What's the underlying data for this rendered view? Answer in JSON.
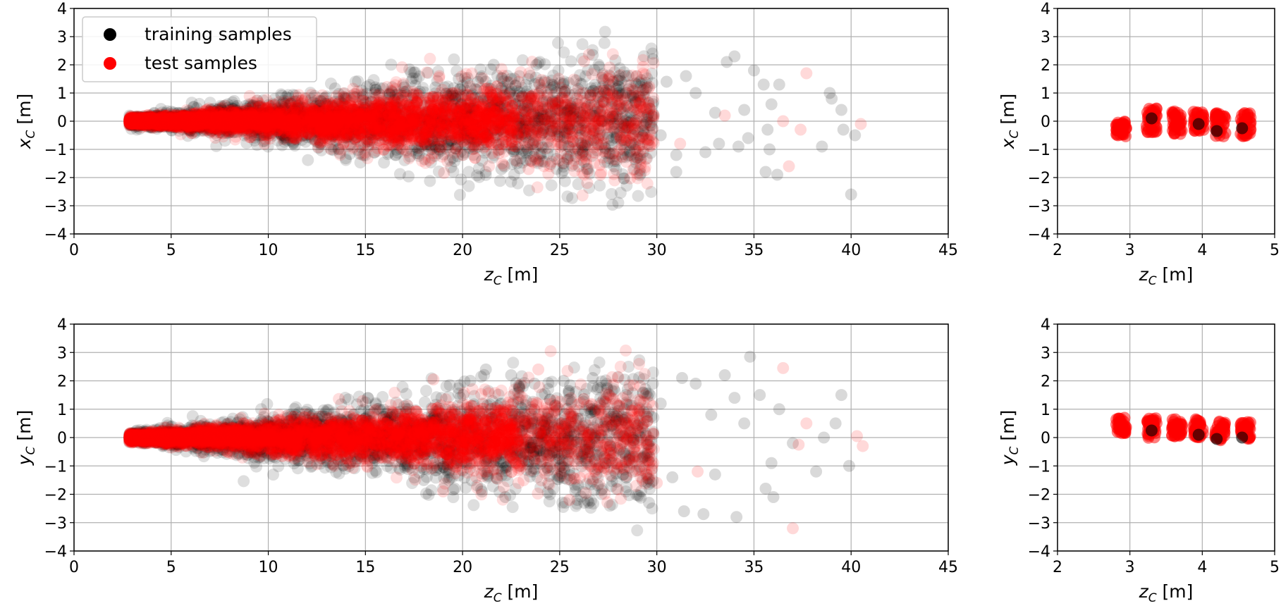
{
  "legend": {
    "training_label": "training samples",
    "test_label": "test samples"
  },
  "colors": {
    "training": "#000000",
    "test": "#ff0000"
  },
  "chart_data": [
    {
      "id": "top-left",
      "type": "scatter",
      "xlabel_var": "z",
      "xlabel_sub": "C",
      "xlabel_unit": " [m]",
      "ylabel_var": "x",
      "ylabel_sub": "C",
      "ylabel_unit": " [m]",
      "xlim": [
        0,
        45
      ],
      "ylim": [
        -4,
        4
      ],
      "xticks": [
        "0",
        "5",
        "10",
        "15",
        "20",
        "25",
        "30",
        "35",
        "40",
        "45"
      ],
      "yticks": [
        "4",
        "3",
        "2",
        "1",
        "0",
        "−1",
        "−2",
        "−3",
        "−4"
      ],
      "grid": true,
      "legend": "upper-left",
      "series": [
        {
          "name": "training samples",
          "alpha": 0.15,
          "description": "dense cone from z≈2.8 widening to ~±1.5 at z≈30, sparse outliers to z≈41",
          "points": [
            [
              26.7,
              2.35
            ],
            [
              27.0,
              2.0
            ],
            [
              21.6,
              2.0
            ],
            [
              23.8,
              2.0
            ],
            [
              29.8,
              2.2
            ],
            [
              34.0,
              2.3
            ],
            [
              33.6,
              2.1
            ],
            [
              35.0,
              1.8
            ],
            [
              38.9,
              1.0
            ],
            [
              39.0,
              0.8
            ],
            [
              39.5,
              0.4
            ],
            [
              35.5,
              1.3
            ],
            [
              36.3,
              1.3
            ],
            [
              35.9,
              0.6
            ],
            [
              34.5,
              0.4
            ],
            [
              33.0,
              0.3
            ],
            [
              31.5,
              1.6
            ],
            [
              30.5,
              1.4
            ],
            [
              32.0,
              1.0
            ],
            [
              29.5,
              1.2
            ],
            [
              28.4,
              1.6
            ],
            [
              28.0,
              1.0
            ],
            [
              31.0,
              -1.2
            ],
            [
              31.0,
              -1.8
            ],
            [
              32.5,
              -1.1
            ],
            [
              35.6,
              -1.8
            ],
            [
              36.2,
              -1.9
            ],
            [
              35.8,
              -1.0
            ],
            [
              40.0,
              -2.6
            ],
            [
              40.2,
              -0.5
            ],
            [
              38.5,
              -0.9
            ],
            [
              39.6,
              -0.3
            ],
            [
              35.7,
              -0.3
            ],
            [
              34.7,
              -0.6
            ],
            [
              34.2,
              -0.9
            ],
            [
              33.2,
              -0.8
            ],
            [
              30.2,
              -0.5
            ],
            [
              29.0,
              -1.3
            ],
            [
              27.8,
              -1.6
            ],
            [
              26.4,
              -1.7
            ],
            [
              25.2,
              -1.5
            ],
            [
              23.5,
              -1.4
            ],
            [
              22.0,
              -1.7
            ],
            [
              21.0,
              -1.4
            ],
            [
              19.5,
              -1.3
            ],
            [
              18.8,
              -1.0
            ],
            [
              24.6,
              1.3
            ],
            [
              22.5,
              1.5
            ],
            [
              20.8,
              1.4
            ],
            [
              19.8,
              1.5
            ],
            [
              18.6,
              1.2
            ],
            [
              17.0,
              1.2
            ],
            [
              15.5,
              1.2
            ]
          ]
        },
        {
          "name": "test samples",
          "alpha": 0.15,
          "description": "dense cone overlapping training cone, few outliers",
          "points": [
            [
              18.8,
              1.6
            ],
            [
              37.7,
              1.7
            ],
            [
              40.5,
              -0.1
            ],
            [
              36.8,
              -1.6
            ],
            [
              27.1,
              -1.9
            ],
            [
              23.4,
              -1.7
            ],
            [
              18.4,
              -1.3
            ],
            [
              20.0,
              -1.2
            ],
            [
              31.2,
              -0.8
            ],
            [
              36.5,
              0.0
            ],
            [
              37.4,
              -0.3
            ],
            [
              33.5,
              0.2
            ]
          ]
        }
      ]
    },
    {
      "id": "top-right",
      "type": "scatter",
      "xlabel_var": "z",
      "xlabel_sub": "C",
      "xlabel_unit": " [m]",
      "ylabel_var": "x",
      "ylabel_sub": "C",
      "ylabel_unit": " [m]",
      "xlim": [
        2,
        5
      ],
      "ylim": [
        -4,
        4
      ],
      "xticks": [
        "2",
        "3",
        "4",
        "5"
      ],
      "yticks": [
        "4",
        "3",
        "2",
        "1",
        "0",
        "−1",
        "−2",
        "−3",
        "−4"
      ],
      "grid": true,
      "series": [
        {
          "name": "training samples",
          "alpha": 0.6,
          "points": [
            [
              3.3,
              0.1
            ],
            [
              3.95,
              -0.1
            ],
            [
              4.2,
              -0.35
            ],
            [
              4.55,
              -0.25
            ]
          ]
        },
        {
          "name": "test samples",
          "alpha": 0.5,
          "clusters": [
            {
              "x": 2.88,
              "ymin": -0.55,
              "ymax": 0.0
            },
            {
              "x": 3.3,
              "ymin": -0.4,
              "ymax": 0.45
            },
            {
              "x": 3.65,
              "ymin": -0.45,
              "ymax": 0.35
            },
            {
              "x": 3.95,
              "ymin": -0.35,
              "ymax": 0.35
            },
            {
              "x": 4.25,
              "ymin": -0.55,
              "ymax": 0.35
            },
            {
              "x": 4.6,
              "ymin": -0.55,
              "ymax": 0.3
            }
          ]
        }
      ]
    },
    {
      "id": "bottom-left",
      "type": "scatter",
      "xlabel_var": "z",
      "xlabel_sub": "C",
      "xlabel_unit": " [m]",
      "ylabel_var": "y",
      "ylabel_sub": "C",
      "ylabel_unit": " [m]",
      "xlim": [
        0,
        45
      ],
      "ylim": [
        -4,
        4
      ],
      "xticks": [
        "0",
        "5",
        "10",
        "15",
        "20",
        "25",
        "30",
        "35",
        "40",
        "45"
      ],
      "yticks": [
        "4",
        "3",
        "2",
        "1",
        "0",
        "−1",
        "−2",
        "−3",
        "−4"
      ],
      "grid": true,
      "series": [
        {
          "name": "training samples",
          "alpha": 0.15,
          "points": [
            [
              34.8,
              2.85
            ],
            [
              33.5,
              2.2
            ],
            [
              31.3,
              2.1
            ],
            [
              32.0,
              1.9
            ],
            [
              34.0,
              1.4
            ],
            [
              35.3,
              1.5
            ],
            [
              36.3,
              1.0
            ],
            [
              39.5,
              1.5
            ],
            [
              39.2,
              0.5
            ],
            [
              38.6,
              0.0
            ],
            [
              35.9,
              -0.9
            ],
            [
              38.2,
              -1.2
            ],
            [
              39.9,
              -1.0
            ],
            [
              35.6,
              -1.8
            ],
            [
              36.0,
              -2.1
            ],
            [
              34.1,
              -2.8
            ],
            [
              32.4,
              -2.7
            ],
            [
              31.4,
              -2.6
            ],
            [
              30.8,
              -1.4
            ],
            [
              33.0,
              -1.3
            ],
            [
              29.6,
              -2.3
            ],
            [
              26.5,
              -2.3
            ],
            [
              25.9,
              -2.2
            ],
            [
              24.5,
              -2.0
            ],
            [
              22.2,
              -2.1
            ],
            [
              21.0,
              -1.9
            ],
            [
              19.6,
              -1.8
            ],
            [
              18.0,
              -1.5
            ],
            [
              23.7,
              1.9
            ],
            [
              21.2,
              2.4
            ],
            [
              22.5,
              2.2
            ],
            [
              20.4,
              2.0
            ],
            [
              25.2,
              2.0
            ],
            [
              26.7,
              2.1
            ],
            [
              28.5,
              1.7
            ],
            [
              29.8,
              1.9
            ],
            [
              30.2,
              1.2
            ],
            [
              32.8,
              0.8
            ],
            [
              34.5,
              0.5
            ],
            [
              37.0,
              -0.2
            ]
          ]
        },
        {
          "name": "test samples",
          "alpha": 0.15,
          "points": [
            [
              36.5,
              2.45
            ],
            [
              23.9,
              2.4
            ],
            [
              18.5,
              2.05
            ],
            [
              37.7,
              0.5
            ],
            [
              40.3,
              0.05
            ],
            [
              40.6,
              -0.3
            ],
            [
              37.3,
              -0.25
            ],
            [
              37.0,
              -3.2
            ],
            [
              25.5,
              -2.2
            ],
            [
              19.0,
              -1.9
            ],
            [
              30.0,
              -1.6
            ],
            [
              32.1,
              -1.2
            ]
          ]
        }
      ]
    },
    {
      "id": "bottom-right",
      "type": "scatter",
      "xlabel_var": "z",
      "xlabel_sub": "C",
      "xlabel_unit": " [m]",
      "ylabel_var": "y",
      "ylabel_sub": "C",
      "ylabel_unit": " [m]",
      "xlim": [
        2,
        5
      ],
      "ylim": [
        -4,
        4
      ],
      "xticks": [
        "2",
        "3",
        "4",
        "5"
      ],
      "yticks": [
        "4",
        "3",
        "2",
        "1",
        "0",
        "−1",
        "−2",
        "−3",
        "−4"
      ],
      "grid": true,
      "series": [
        {
          "name": "training samples",
          "alpha": 0.6,
          "points": [
            [
              3.3,
              0.25
            ],
            [
              3.95,
              0.1
            ],
            [
              4.2,
              -0.05
            ],
            [
              4.55,
              0.0
            ]
          ]
        },
        {
          "name": "test samples",
          "alpha": 0.5,
          "clusters": [
            {
              "x": 2.88,
              "ymin": 0.15,
              "ymax": 0.7
            },
            {
              "x": 3.3,
              "ymin": -0.05,
              "ymax": 0.7
            },
            {
              "x": 3.65,
              "ymin": 0.0,
              "ymax": 0.65
            },
            {
              "x": 3.95,
              "ymin": 0.0,
              "ymax": 0.65
            },
            {
              "x": 4.25,
              "ymin": -0.1,
              "ymax": 0.65
            },
            {
              "x": 4.6,
              "ymin": -0.05,
              "ymax": 0.55
            }
          ]
        }
      ]
    }
  ]
}
